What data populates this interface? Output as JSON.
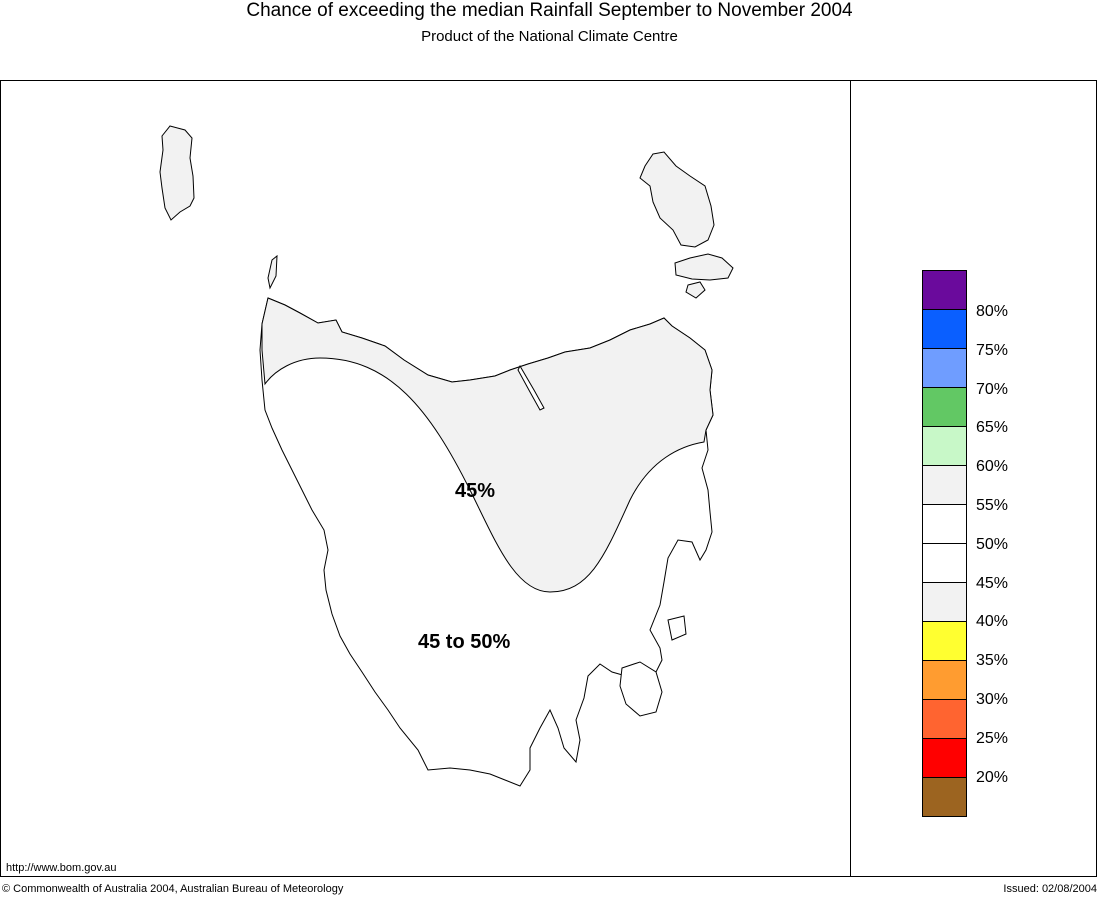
{
  "header": {
    "title": "Chance of exceeding the median Rainfall September to November 2004",
    "subtitle": "Product of the National Climate Centre"
  },
  "map": {
    "region_labels": [
      "45%",
      "45 to 50%"
    ],
    "colors": {
      "land_low": "#f2f2f2",
      "land_mid": "#ffffff",
      "outline": "#000000"
    }
  },
  "legend": {
    "swatches": [
      {
        "color": "#6a0a9c"
      },
      {
        "color": "#0a5fff"
      },
      {
        "color": "#6f9dff"
      },
      {
        "color": "#62c864"
      },
      {
        "color": "#c8f8c8"
      },
      {
        "color": "#f2f2f2"
      },
      {
        "color": "#ffffff"
      },
      {
        "color": "#ffffff"
      },
      {
        "color": "#f2f2f2"
      },
      {
        "color": "#ffff30"
      },
      {
        "color": "#ff9c30"
      },
      {
        "color": "#ff6430"
      },
      {
        "color": "#ff0000"
      },
      {
        "color": "#9c6420"
      }
    ],
    "labels": [
      "80%",
      "75%",
      "70%",
      "65%",
      "60%",
      "55%",
      "50%",
      "45%",
      "40%",
      "35%",
      "30%",
      "25%",
      "20%"
    ]
  },
  "footer": {
    "url": "http://www.bom.gov.au",
    "copyright": "© Commonwealth of Australia 2004, Australian Bureau of Meteorology",
    "issued": "Issued: 02/08/2004"
  }
}
